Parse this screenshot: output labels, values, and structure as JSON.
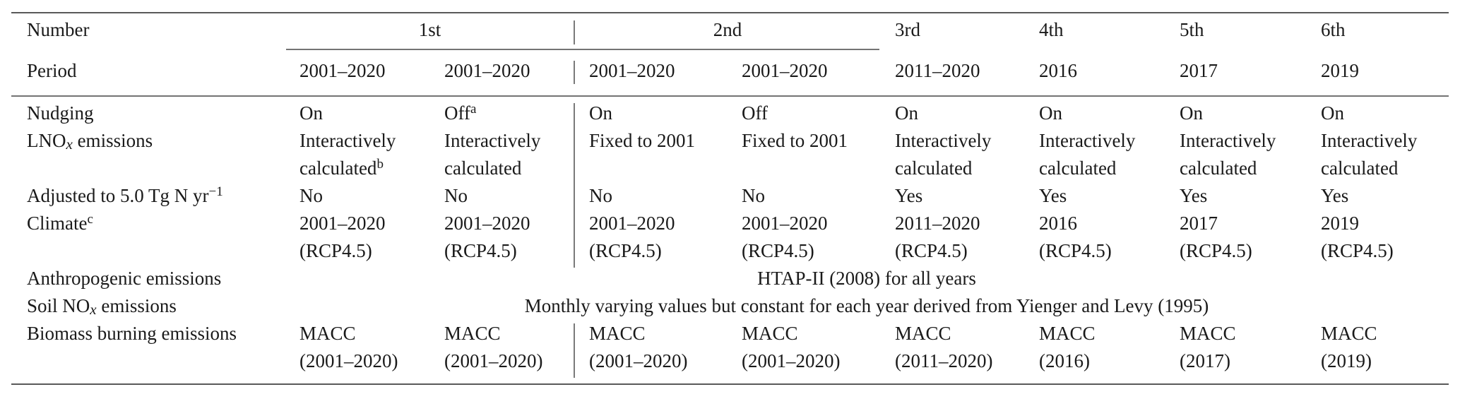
{
  "table": {
    "header": {
      "number_label": "Number",
      "period_label": "Period",
      "numbers": [
        {
          "text": "1st",
          "span": 2
        },
        {
          "text": "2nd",
          "span": 2
        },
        {
          "text": "3rd",
          "span": 1
        },
        {
          "text": "4th",
          "span": 1
        },
        {
          "text": "5th",
          "span": 1
        },
        {
          "text": "6th",
          "span": 1
        }
      ],
      "periods": [
        "2001–2020",
        "2001–2020",
        "2001–2020",
        "2001–2020",
        "2011–2020",
        "2016",
        "2017",
        "2019"
      ]
    },
    "rows": [
      {
        "label": "Nudging",
        "cells": [
          [
            "On"
          ],
          [
            [
              {
                "text": "Off"
              },
              {
                "text": "a",
                "style": "sup"
              }
            ]
          ],
          [
            "On"
          ],
          [
            "Off"
          ],
          [
            "On"
          ],
          [
            "On"
          ],
          [
            "On"
          ],
          [
            "On"
          ]
        ]
      },
      {
        "label": [
          {
            "text": "LNO"
          },
          {
            "text": "x",
            "style": "italic-sub"
          },
          {
            "text": " emissions"
          }
        ],
        "cells": [
          [
            "Interactively",
            [
              {
                "text": "calculated"
              },
              {
                "text": "b",
                "style": "sup"
              }
            ]
          ],
          [
            "Interactively",
            "calculated"
          ],
          [
            "Fixed to 2001"
          ],
          [
            "Fixed to 2001"
          ],
          [
            "Interactively",
            "calculated"
          ],
          [
            "Interactively",
            "calculated"
          ],
          [
            "Interactively",
            "calculated"
          ],
          [
            "Interactively",
            "calculated"
          ]
        ]
      },
      {
        "label": [
          {
            "text": "Adjusted to 5.0 Tg N yr"
          },
          {
            "text": "−1",
            "style": "sup"
          }
        ],
        "cells": [
          [
            "No"
          ],
          [
            "No"
          ],
          [
            "No"
          ],
          [
            "No"
          ],
          [
            "Yes"
          ],
          [
            "Yes"
          ],
          [
            "Yes"
          ],
          [
            "Yes"
          ]
        ]
      },
      {
        "label": [
          {
            "text": "Climate"
          },
          {
            "text": "c",
            "style": "sup"
          }
        ],
        "cells": [
          [
            "2001–2020",
            "(RCP4.5)"
          ],
          [
            "2001–2020",
            "(RCP4.5)"
          ],
          [
            "2001–2020",
            "(RCP4.5)"
          ],
          [
            "2001–2020",
            "(RCP4.5)"
          ],
          [
            "2011–2020",
            "(RCP4.5)"
          ],
          [
            "2016",
            "(RCP4.5)"
          ],
          [
            "2017",
            "(RCP4.5)"
          ],
          [
            "2019",
            "(RCP4.5)"
          ]
        ]
      },
      {
        "label": "Anthropogenic emissions",
        "span": "HTAP-II (2008) for all years"
      },
      {
        "label": [
          {
            "text": "Soil NO"
          },
          {
            "text": "x",
            "style": "italic-sub"
          },
          {
            "text": " emissions"
          }
        ],
        "span": "Monthly varying values but constant for each year derived from Yienger and Levy (1995)"
      },
      {
        "label": "Biomass burning emissions",
        "cells": [
          [
            "MACC",
            "(2001–2020)"
          ],
          [
            "MACC",
            "(2001–2020)"
          ],
          [
            "MACC",
            "(2001–2020)"
          ],
          [
            "MACC",
            "(2001–2020)"
          ],
          [
            "MACC",
            "(2011–2020)"
          ],
          [
            "MACC",
            "(2016)"
          ],
          [
            "MACC",
            "(2017)"
          ],
          [
            "MACC",
            "(2019)"
          ]
        ]
      }
    ]
  }
}
